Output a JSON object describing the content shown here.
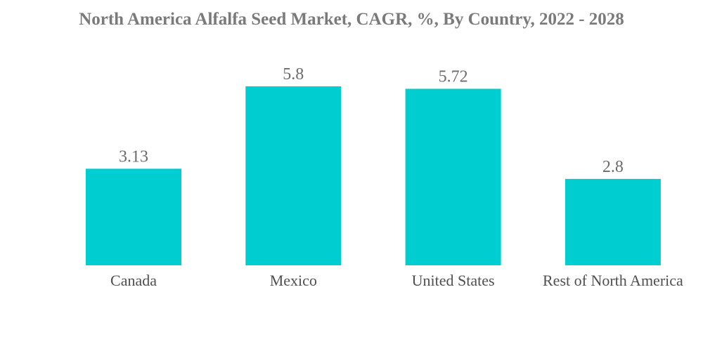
{
  "chart_data": {
    "type": "bar",
    "title": "North America Alfalfa Seed Market, CAGR, %, By Country, 2022 - 2028",
    "categories": [
      "Canada",
      "Mexico",
      "United States",
      "Rest of North America"
    ],
    "values": [
      3.13,
      5.8,
      5.72,
      2.8
    ],
    "value_labels": [
      "3.13",
      "5.8",
      "5.72",
      "2.8"
    ],
    "xlabel": "",
    "ylabel": "",
    "ylim": [
      0,
      5.8
    ],
    "grid": false,
    "legend": "none",
    "bar_color": "#00CDD0"
  }
}
